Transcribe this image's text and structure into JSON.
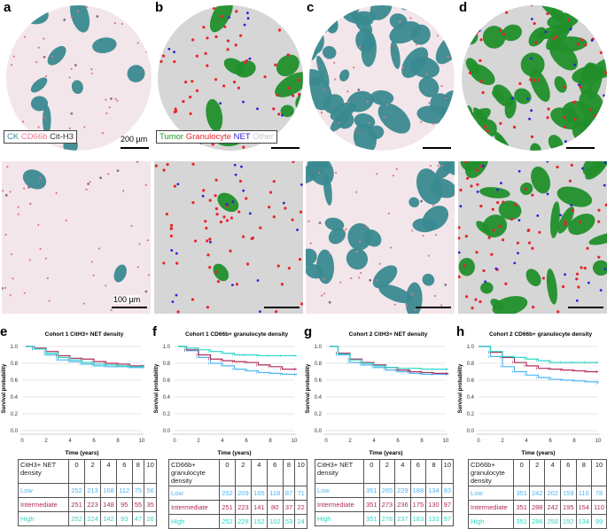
{
  "panels": {
    "a": {
      "label": "a",
      "legend": [
        "CK",
        "CD66b",
        "Cit-H3"
      ],
      "legend_colors": [
        "#3a8f94",
        "#e77a93",
        "#333333"
      ],
      "scale_top": "200 µm",
      "scale_bottom": "100 µm"
    },
    "b": {
      "label": "b",
      "legend": [
        "Tumor",
        "Granulocyte",
        "NET",
        "Other"
      ],
      "legend_colors": [
        "#1f9a2a",
        "#e8242b",
        "#2a22d9",
        "#c9c9d9"
      ]
    },
    "c": {
      "label": "c"
    },
    "d": {
      "label": "d"
    },
    "e": {
      "label": "e"
    },
    "f": {
      "label": "f"
    },
    "g": {
      "label": "g"
    },
    "h": {
      "label": "h"
    }
  },
  "colors": {
    "Low": "#4db5f2",
    "Intermediate": "#b02a5e",
    "High": "#2fd6c6"
  },
  "chart_data": [
    {
      "type": "line",
      "title": "Cohort 1 CitH3+ NET density",
      "xlabel": "Time (years)",
      "ylabel": "Survival probability",
      "xlim": [
        0,
        10
      ],
      "ylim": [
        0,
        1
      ],
      "xticks": [
        0,
        2,
        4,
        6,
        8,
        10
      ],
      "yticks": [
        "0.0",
        "0.2",
        "0.4",
        "0.6",
        "0.8",
        "1.0"
      ],
      "grid": "horizontal",
      "x": [
        0.3,
        1,
        2,
        3,
        4,
        5,
        6,
        7,
        8,
        9,
        10.2
      ],
      "series": [
        {
          "name": "Low",
          "values": [
            1,
            0.97,
            0.9,
            0.84,
            0.82,
            0.79,
            0.77,
            0.76,
            0.76,
            0.75,
            0.75
          ]
        },
        {
          "name": "Intermediate",
          "values": [
            1,
            0.98,
            0.94,
            0.89,
            0.86,
            0.85,
            0.82,
            0.8,
            0.79,
            0.77,
            0.77
          ]
        },
        {
          "name": "High",
          "values": [
            1,
            0.97,
            0.92,
            0.87,
            0.84,
            0.81,
            0.79,
            0.78,
            0.77,
            0.76,
            0.76
          ]
        }
      ],
      "table": {
        "header": "CitH3+ NET density",
        "times": [
          "0",
          "2",
          "4",
          "6",
          "8",
          "10"
        ],
        "rows": [
          {
            "name": "Low",
            "values": [
              "252",
              "213",
              "168",
              "112",
              "75",
              "56"
            ]
          },
          {
            "name": "Intermediate",
            "values": [
              "251",
              "223",
              "148",
              "95",
              "55",
              "35"
            ]
          },
          {
            "name": "High",
            "values": [
              "252",
              "224",
              "142",
              "93",
              "47",
              "26"
            ]
          }
        ]
      }
    },
    {
      "type": "line",
      "title": "Cohort 1 CD66b+ granulocyte density",
      "xlabel": "Time (years)",
      "ylabel": "Survival probability",
      "xlim": [
        0,
        10
      ],
      "ylim": [
        0,
        1
      ],
      "xticks": [
        0,
        2,
        4,
        6,
        8,
        10
      ],
      "yticks": [
        "0.0",
        "0.2",
        "0.4",
        "0.6",
        "0.8",
        "1.0"
      ],
      "grid": "horizontal",
      "x": [
        0.3,
        1,
        2,
        3,
        4,
        5,
        6,
        7,
        8,
        9,
        10.2
      ],
      "series": [
        {
          "name": "Low",
          "values": [
            1,
            0.95,
            0.87,
            0.8,
            0.77,
            0.73,
            0.71,
            0.69,
            0.68,
            0.67,
            0.66
          ]
        },
        {
          "name": "Intermediate",
          "values": [
            1,
            0.96,
            0.9,
            0.85,
            0.83,
            0.82,
            0.81,
            0.78,
            0.76,
            0.73,
            0.73
          ]
        },
        {
          "name": "High",
          "values": [
            1,
            0.98,
            0.96,
            0.94,
            0.92,
            0.9,
            0.9,
            0.89,
            0.89,
            0.89,
            0.89
          ]
        }
      ],
      "table": {
        "header": "CD66b+ granulocyte density",
        "times": [
          "0",
          "2",
          "4",
          "6",
          "8",
          "10"
        ],
        "rows": [
          {
            "name": "Low",
            "values": [
              "252",
              "209",
              "165",
              "118",
              "87",
              "71"
            ]
          },
          {
            "name": "Intermediate",
            "values": [
              "251",
              "223",
              "141",
              "80",
              "37",
              "22"
            ]
          },
          {
            "name": "High",
            "values": [
              "252",
              "228",
              "152",
              "102",
              "53",
              "24"
            ]
          }
        ]
      }
    },
    {
      "type": "line",
      "title": "Cohort 2 CitH3+ NET density",
      "xlabel": "Time (years)",
      "ylabel": "Survival probability",
      "xlim": [
        0,
        10
      ],
      "ylim": [
        0,
        1
      ],
      "xticks": [
        0,
        2,
        4,
        6,
        8,
        10
      ],
      "yticks": [
        "0.0",
        "0.2",
        "0.4",
        "0.6",
        "0.8",
        "1.0"
      ],
      "grid": "horizontal",
      "x": [
        0.3,
        1,
        2,
        3,
        4,
        5,
        6,
        7,
        8,
        9,
        10.2
      ],
      "series": [
        {
          "name": "Low",
          "values": [
            1,
            0.9,
            0.81,
            0.78,
            0.75,
            0.72,
            0.7,
            0.68,
            0.67,
            0.67,
            0.66
          ]
        },
        {
          "name": "Intermediate",
          "values": [
            1,
            0.92,
            0.85,
            0.81,
            0.78,
            0.75,
            0.72,
            0.7,
            0.69,
            0.68,
            0.68
          ]
        },
        {
          "name": "High",
          "values": [
            1,
            0.91,
            0.84,
            0.8,
            0.77,
            0.75,
            0.74,
            0.74,
            0.73,
            0.73,
            0.73
          ]
        }
      ],
      "table": {
        "header": "CitH3+ NET density",
        "times": [
          "0",
          "2",
          "4",
          "6",
          "8",
          "10"
        ],
        "rows": [
          {
            "name": "Low",
            "values": [
              "351",
              "265",
              "229",
              "188",
              "134",
              "93"
            ]
          },
          {
            "name": "Intermediate",
            "values": [
              "351",
              "273",
              "236",
              "175",
              "130",
              "97"
            ]
          },
          {
            "name": "High",
            "values": [
              "351",
              "278",
              "237",
              "183",
              "133",
              "97"
            ]
          }
        ]
      }
    },
    {
      "type": "line",
      "title": "Cohort 2 CD66b+ granulocyte density",
      "xlabel": "Time (years)",
      "ylabel": "Survival probability",
      "xlim": [
        0,
        10
      ],
      "ylim": [
        0,
        1
      ],
      "xticks": [
        0,
        2,
        4,
        6,
        8,
        10
      ],
      "yticks": [
        "0.0",
        "0.2",
        "0.4",
        "0.6",
        "0.8",
        "1.0"
      ],
      "grid": "horizontal",
      "x": [
        0,
        1,
        2,
        3,
        4,
        5,
        6,
        7,
        8,
        9,
        10
      ],
      "series": [
        {
          "name": "Low",
          "values": [
            1,
            0.88,
            0.76,
            0.7,
            0.66,
            0.63,
            0.61,
            0.6,
            0.59,
            0.58,
            0.56
          ]
        },
        {
          "name": "Intermediate",
          "values": [
            1,
            0.93,
            0.87,
            0.81,
            0.77,
            0.74,
            0.73,
            0.72,
            0.71,
            0.7,
            0.7
          ]
        },
        {
          "name": "High",
          "values": [
            1,
            0.94,
            0.88,
            0.87,
            0.85,
            0.83,
            0.81,
            0.81,
            0.81,
            0.81,
            0.81
          ]
        }
      ],
      "table": {
        "header": "CD66b+ granulocyte density",
        "times": [
          "0",
          "2",
          "4",
          "6",
          "8",
          "10"
        ],
        "rows": [
          {
            "name": "Low",
            "values": [
              "351",
              "242",
              "202",
              "159",
              "110",
              "78"
            ]
          },
          {
            "name": "Intermediate",
            "values": [
              "351",
              "288",
              "242",
              "195",
              "154",
              "110"
            ]
          },
          {
            "name": "High",
            "values": [
              "351",
              "286",
              "258",
              "192",
              "134",
              "99"
            ]
          }
        ]
      }
    }
  ]
}
